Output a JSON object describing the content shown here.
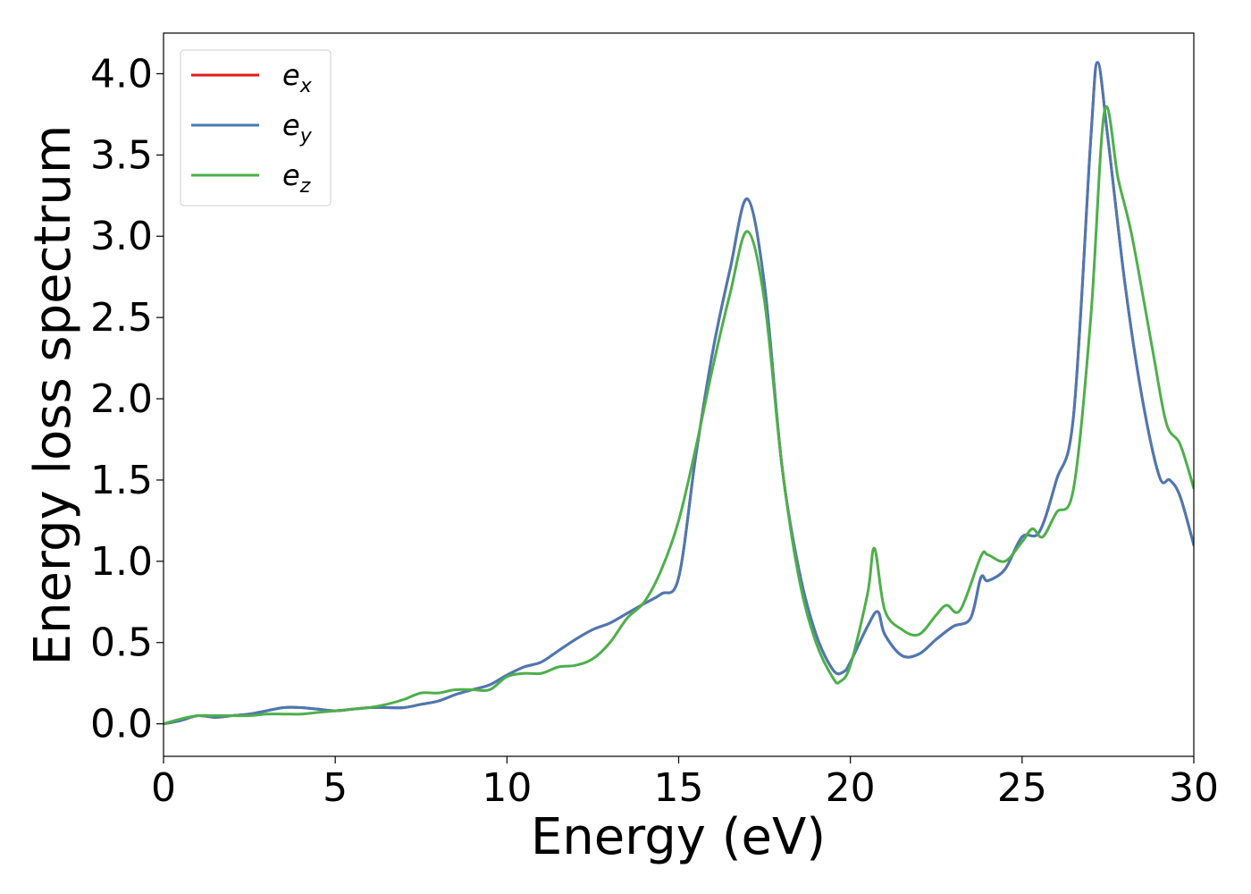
{
  "chart_data": {
    "type": "line",
    "xlabel": "Energy (eV)",
    "ylabel": "Energy loss spectrum",
    "xlim": [
      0,
      30
    ],
    "ylim": [
      -0.2,
      4.25
    ],
    "xticks": [
      0,
      5,
      10,
      15,
      20,
      25,
      30
    ],
    "yticks": [
      0.0,
      0.5,
      1.0,
      1.5,
      2.0,
      2.5,
      3.0,
      3.5,
      4.0
    ],
    "xtick_labels": [
      "0",
      "5",
      "10",
      "15",
      "20",
      "25",
      "30"
    ],
    "ytick_labels": [
      "0.0",
      "0.5",
      "1.0",
      "1.5",
      "2.0",
      "2.5",
      "3.0",
      "3.5",
      "4.0"
    ],
    "grid": false,
    "legend_position": "top-left",
    "series": [
      {
        "name": "e_x",
        "label_base": "e",
        "label_sub": "x",
        "color": "#e41a1c",
        "x": [
          0,
          0.5,
          1,
          1.5,
          2,
          2.5,
          3,
          3.5,
          4,
          4.5,
          5,
          5.5,
          6,
          6.5,
          7,
          7.5,
          8,
          8.5,
          9,
          9.5,
          10,
          10.5,
          11,
          11.5,
          12,
          12.5,
          13,
          13.5,
          14,
          14.5,
          15,
          15.5,
          16,
          16.5,
          17,
          17.5,
          18,
          18.5,
          19,
          19.5,
          19.8,
          20,
          20.5,
          20.8,
          21,
          21.5,
          22,
          22.5,
          23,
          23.5,
          23.8,
          24,
          24.5,
          25,
          25.5,
          26,
          26.5,
          27,
          27.2,
          27.5,
          28,
          28.5,
          29,
          29.3,
          29.6,
          30
        ],
        "values": [
          0.0,
          0.02,
          0.05,
          0.04,
          0.05,
          0.06,
          0.08,
          0.1,
          0.1,
          0.09,
          0.08,
          0.09,
          0.1,
          0.1,
          0.1,
          0.12,
          0.14,
          0.18,
          0.21,
          0.24,
          0.3,
          0.35,
          0.38,
          0.45,
          0.52,
          0.58,
          0.62,
          0.68,
          0.74,
          0.8,
          0.9,
          1.65,
          2.3,
          2.8,
          3.23,
          2.7,
          1.6,
          0.95,
          0.55,
          0.33,
          0.32,
          0.38,
          0.6,
          0.69,
          0.55,
          0.42,
          0.43,
          0.52,
          0.6,
          0.65,
          0.9,
          0.88,
          0.95,
          1.15,
          1.18,
          1.5,
          1.9,
          3.6,
          4.07,
          3.6,
          2.7,
          2.0,
          1.52,
          1.5,
          1.4,
          1.1
        ]
      },
      {
        "name": "e_y",
        "label_base": "e",
        "label_sub": "y",
        "color": "#4a79b4",
        "x": [
          0,
          0.5,
          1,
          1.5,
          2,
          2.5,
          3,
          3.5,
          4,
          4.5,
          5,
          5.5,
          6,
          6.5,
          7,
          7.5,
          8,
          8.5,
          9,
          9.5,
          10,
          10.5,
          11,
          11.5,
          12,
          12.5,
          13,
          13.5,
          14,
          14.5,
          15,
          15.5,
          16,
          16.5,
          17,
          17.5,
          18,
          18.5,
          19,
          19.5,
          19.8,
          20,
          20.5,
          20.8,
          21,
          21.5,
          22,
          22.5,
          23,
          23.5,
          23.8,
          24,
          24.5,
          25,
          25.5,
          26,
          26.5,
          27,
          27.2,
          27.5,
          28,
          28.5,
          29,
          29.3,
          29.6,
          30
        ],
        "values": [
          0.0,
          0.02,
          0.05,
          0.04,
          0.05,
          0.06,
          0.08,
          0.1,
          0.1,
          0.09,
          0.08,
          0.09,
          0.1,
          0.1,
          0.1,
          0.12,
          0.14,
          0.18,
          0.21,
          0.24,
          0.3,
          0.35,
          0.38,
          0.45,
          0.52,
          0.58,
          0.62,
          0.68,
          0.74,
          0.8,
          0.9,
          1.65,
          2.3,
          2.8,
          3.23,
          2.7,
          1.6,
          0.95,
          0.55,
          0.33,
          0.32,
          0.38,
          0.6,
          0.69,
          0.55,
          0.42,
          0.43,
          0.52,
          0.6,
          0.65,
          0.9,
          0.88,
          0.95,
          1.15,
          1.18,
          1.5,
          1.9,
          3.6,
          4.07,
          3.6,
          2.7,
          2.0,
          1.52,
          1.5,
          1.4,
          1.1
        ]
      },
      {
        "name": "e_z",
        "label_base": "e",
        "label_sub": "z",
        "color": "#4daf4a",
        "x": [
          0,
          0.5,
          1,
          1.5,
          2,
          2.5,
          3,
          3.5,
          4,
          4.5,
          5,
          5.5,
          6,
          6.5,
          7,
          7.5,
          8,
          8.5,
          9,
          9.5,
          10,
          10.5,
          11,
          11.5,
          12,
          12.5,
          13,
          13.5,
          14,
          14.5,
          15,
          15.5,
          16,
          16.5,
          17,
          17.5,
          18,
          18.5,
          19,
          19.5,
          19.7,
          20,
          20.5,
          20.7,
          21,
          21.5,
          22,
          22.5,
          22.8,
          23.2,
          23.8,
          24,
          24.5,
          25,
          25.3,
          25.6,
          26,
          26.5,
          27,
          27.4,
          27.8,
          28.2,
          28.8,
          29.2,
          29.6,
          30
        ],
        "values": [
          0.0,
          0.03,
          0.05,
          0.05,
          0.05,
          0.05,
          0.06,
          0.06,
          0.06,
          0.07,
          0.08,
          0.09,
          0.1,
          0.12,
          0.15,
          0.19,
          0.19,
          0.21,
          0.21,
          0.21,
          0.29,
          0.31,
          0.31,
          0.35,
          0.36,
          0.4,
          0.5,
          0.65,
          0.75,
          0.95,
          1.25,
          1.7,
          2.2,
          2.65,
          3.03,
          2.6,
          1.6,
          0.9,
          0.5,
          0.28,
          0.26,
          0.36,
          0.8,
          1.08,
          0.7,
          0.58,
          0.55,
          0.67,
          0.73,
          0.7,
          1.03,
          1.04,
          1.0,
          1.12,
          1.2,
          1.15,
          1.3,
          1.45,
          2.5,
          3.77,
          3.35,
          3.0,
          2.3,
          1.85,
          1.72,
          1.45
        ]
      }
    ]
  }
}
